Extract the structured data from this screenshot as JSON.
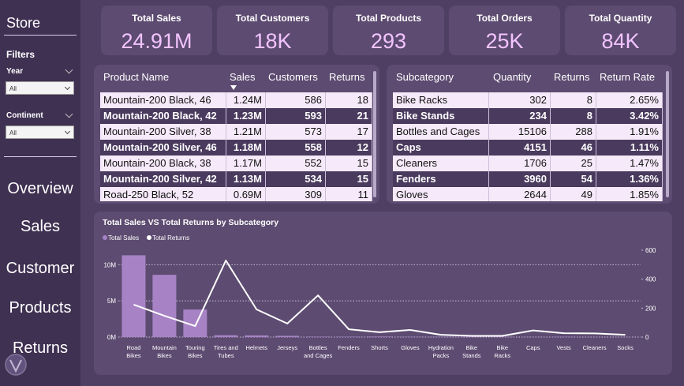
{
  "sidebar": {
    "title": "Store",
    "filters_label": "Filters",
    "filters": [
      {
        "label": "Year",
        "value": "All"
      },
      {
        "label": "Continent",
        "value": "All"
      }
    ],
    "nav": [
      "Overview",
      "Sales",
      "Customer",
      "Products",
      "Returns"
    ]
  },
  "kpis": [
    {
      "label": "Total Sales",
      "value": "24.91M"
    },
    {
      "label": "Total Customers",
      "value": "18K"
    },
    {
      "label": "Total Products",
      "value": "293"
    },
    {
      "label": "Total Orders",
      "value": "25K"
    },
    {
      "label": "Total Quantity",
      "value": "84K"
    }
  ],
  "product_table": {
    "columns": [
      "Product Name",
      "Sales",
      "Customers",
      "Returns"
    ],
    "rows": [
      [
        "Mountain-200 Black, 46",
        "1.24M",
        "586",
        "18"
      ],
      [
        "Mountain-200 Black, 42",
        "1.23M",
        "593",
        "21"
      ],
      [
        "Mountain-200 Silver, 38",
        "1.21M",
        "573",
        "17"
      ],
      [
        "Mountain-200 Silver, 46",
        "1.18M",
        "558",
        "12"
      ],
      [
        "Mountain-200 Black, 38",
        "1.17M",
        "552",
        "15"
      ],
      [
        "Mountain-200 Silver, 42",
        "1.13M",
        "534",
        "15"
      ],
      [
        "Road-250 Black, 52",
        "0.69M",
        "309",
        "11"
      ]
    ]
  },
  "subcategory_table": {
    "columns": [
      "Subcategory",
      "Quantity",
      "Returns",
      "Return Rate"
    ],
    "rows": [
      [
        "Bike Racks",
        "302",
        "8",
        "2.65%"
      ],
      [
        "Bike Stands",
        "234",
        "8",
        "3.42%"
      ],
      [
        "Bottles and Cages",
        "15106",
        "288",
        "1.91%"
      ],
      [
        "Caps",
        "4151",
        "46",
        "1.11%"
      ],
      [
        "Cleaners",
        "1706",
        "25",
        "1.47%"
      ],
      [
        "Fenders",
        "3960",
        "54",
        "1.36%"
      ],
      [
        "Gloves",
        "2644",
        "49",
        "1.85%"
      ]
    ]
  },
  "chart_data": {
    "type": "bar_line",
    "title": "Total Sales VS Total Returns by Subcategory",
    "categories": [
      "Road Bikes",
      "Mountain Bikes",
      "Touring Bikes",
      "Tires and Tubes",
      "Helmets",
      "Jerseys",
      "Bottles and Cages",
      "Fenders",
      "Shorts",
      "Gloves",
      "Hydration Packs",
      "Bike Stands",
      "Bike Racks",
      "Caps",
      "Vests",
      "Cleaners",
      "Socks"
    ],
    "series": [
      {
        "name": "Total Sales",
        "type": "bar",
        "color": "#a783c6",
        "values": [
          11300000,
          8600000,
          3800000,
          250000,
          230000,
          170000,
          60000,
          50000,
          70000,
          40000,
          40000,
          40000,
          40000,
          20000,
          40000,
          10000,
          10000
        ]
      },
      {
        "name": "Total Returns",
        "type": "line",
        "axis": "y2",
        "color": "#ffffff",
        "values": [
          224,
          147,
          76,
          529,
          191,
          93,
          288,
          54,
          33,
          49,
          16,
          8,
          8,
          46,
          27,
          25,
          16
        ]
      }
    ],
    "ylim": [
      0,
      12000000
    ],
    "yticks": [
      {
        "value": 0,
        "label": "0M"
      },
      {
        "value": 5000000,
        "label": "5M"
      },
      {
        "value": 10000000,
        "label": "10M"
      }
    ],
    "y2lim": [
      0,
      600
    ],
    "y2ticks": [
      0,
      200,
      400,
      600
    ],
    "grid": true
  }
}
